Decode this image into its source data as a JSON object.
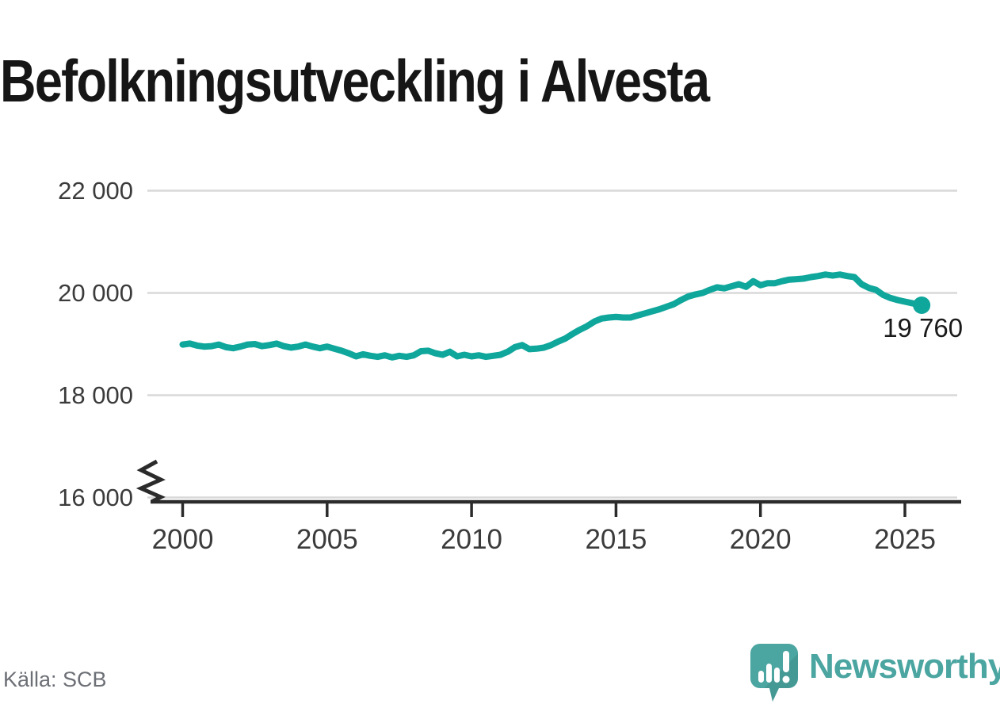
{
  "title": "Befolkningsutveckling i Alvesta",
  "source": "Källa: SCB",
  "logo": {
    "text": "Newsworthy"
  },
  "colors": {
    "line": "#0fa69b",
    "grid": "#d8d8d8",
    "axis": "#2b2b2b",
    "tick_text": "#3b3b3b",
    "title_text": "#161616",
    "value_text": "#1a1a1a",
    "source_text": "#6c6f75",
    "logo": "#4ba5a1"
  },
  "chart_data": {
    "type": "line",
    "title": "Befolkningsutveckling i Alvesta",
    "xlabel": "",
    "ylabel": "",
    "grid": "horizontal",
    "legend": "none",
    "axis_break": true,
    "ylim": [
      16000,
      22400
    ],
    "xlim": [
      2000,
      2025.6
    ],
    "yticks": [
      {
        "value": 22000,
        "label": "22 000"
      },
      {
        "value": 20000,
        "label": "20 000"
      },
      {
        "value": 18000,
        "label": "18 000"
      },
      {
        "value": 16000,
        "label": "16 000"
      }
    ],
    "xticks": [
      {
        "value": 2000,
        "label": "2000"
      },
      {
        "value": 2005,
        "label": "2005"
      },
      {
        "value": 2010,
        "label": "2010"
      },
      {
        "value": 2015,
        "label": "2015"
      },
      {
        "value": 2020,
        "label": "2020"
      },
      {
        "value": 2025,
        "label": "2025"
      }
    ],
    "end_label": {
      "text": "19 760",
      "value": 19760
    },
    "series": [
      {
        "name": "",
        "points": [
          [
            2000.0,
            18990
          ],
          [
            2000.25,
            19010
          ],
          [
            2000.5,
            18970
          ],
          [
            2000.75,
            18950
          ],
          [
            2001.0,
            18960
          ],
          [
            2001.25,
            18990
          ],
          [
            2001.5,
            18940
          ],
          [
            2001.75,
            18920
          ],
          [
            2002.0,
            18950
          ],
          [
            2002.25,
            18990
          ],
          [
            2002.5,
            19000
          ],
          [
            2002.75,
            18960
          ],
          [
            2003.0,
            18980
          ],
          [
            2003.25,
            19010
          ],
          [
            2003.5,
            18960
          ],
          [
            2003.75,
            18930
          ],
          [
            2004.0,
            18950
          ],
          [
            2004.25,
            18990
          ],
          [
            2004.5,
            18950
          ],
          [
            2004.75,
            18920
          ],
          [
            2005.0,
            18950
          ],
          [
            2005.25,
            18910
          ],
          [
            2005.5,
            18870
          ],
          [
            2005.75,
            18820
          ],
          [
            2006.0,
            18760
          ],
          [
            2006.25,
            18800
          ],
          [
            2006.5,
            18770
          ],
          [
            2006.75,
            18750
          ],
          [
            2007.0,
            18780
          ],
          [
            2007.25,
            18740
          ],
          [
            2007.5,
            18770
          ],
          [
            2007.75,
            18750
          ],
          [
            2008.0,
            18780
          ],
          [
            2008.25,
            18860
          ],
          [
            2008.5,
            18870
          ],
          [
            2008.75,
            18820
          ],
          [
            2009.0,
            18790
          ],
          [
            2009.25,
            18850
          ],
          [
            2009.5,
            18760
          ],
          [
            2009.75,
            18790
          ],
          [
            2010.0,
            18760
          ],
          [
            2010.25,
            18780
          ],
          [
            2010.5,
            18750
          ],
          [
            2010.75,
            18770
          ],
          [
            2011.0,
            18790
          ],
          [
            2011.25,
            18850
          ],
          [
            2011.5,
            18940
          ],
          [
            2011.75,
            18980
          ],
          [
            2012.0,
            18900
          ],
          [
            2012.25,
            18910
          ],
          [
            2012.5,
            18930
          ],
          [
            2012.75,
            18980
          ],
          [
            2013.0,
            19050
          ],
          [
            2013.25,
            19110
          ],
          [
            2013.5,
            19200
          ],
          [
            2013.75,
            19280
          ],
          [
            2014.0,
            19350
          ],
          [
            2014.25,
            19440
          ],
          [
            2014.5,
            19500
          ],
          [
            2014.75,
            19520
          ],
          [
            2015.0,
            19530
          ],
          [
            2015.25,
            19520
          ],
          [
            2015.5,
            19520
          ],
          [
            2015.75,
            19560
          ],
          [
            2016.0,
            19600
          ],
          [
            2016.25,
            19640
          ],
          [
            2016.5,
            19680
          ],
          [
            2016.75,
            19730
          ],
          [
            2017.0,
            19780
          ],
          [
            2017.25,
            19860
          ],
          [
            2017.5,
            19930
          ],
          [
            2017.75,
            19970
          ],
          [
            2018.0,
            20000
          ],
          [
            2018.25,
            20060
          ],
          [
            2018.5,
            20110
          ],
          [
            2018.75,
            20090
          ],
          [
            2019.0,
            20130
          ],
          [
            2019.25,
            20170
          ],
          [
            2019.5,
            20120
          ],
          [
            2019.75,
            20230
          ],
          [
            2020.0,
            20150
          ],
          [
            2020.25,
            20190
          ],
          [
            2020.5,
            20190
          ],
          [
            2020.75,
            20230
          ],
          [
            2021.0,
            20260
          ],
          [
            2021.25,
            20270
          ],
          [
            2021.5,
            20280
          ],
          [
            2021.75,
            20310
          ],
          [
            2022.0,
            20330
          ],
          [
            2022.25,
            20360
          ],
          [
            2022.5,
            20340
          ],
          [
            2022.75,
            20360
          ],
          [
            2023.0,
            20330
          ],
          [
            2023.25,
            20310
          ],
          [
            2023.5,
            20170
          ],
          [
            2023.75,
            20100
          ],
          [
            2024.0,
            20060
          ],
          [
            2024.25,
            19960
          ],
          [
            2024.5,
            19900
          ],
          [
            2024.75,
            19860
          ],
          [
            2025.0,
            19830
          ],
          [
            2025.25,
            19800
          ],
          [
            2025.58,
            19760
          ]
        ]
      }
    ]
  }
}
